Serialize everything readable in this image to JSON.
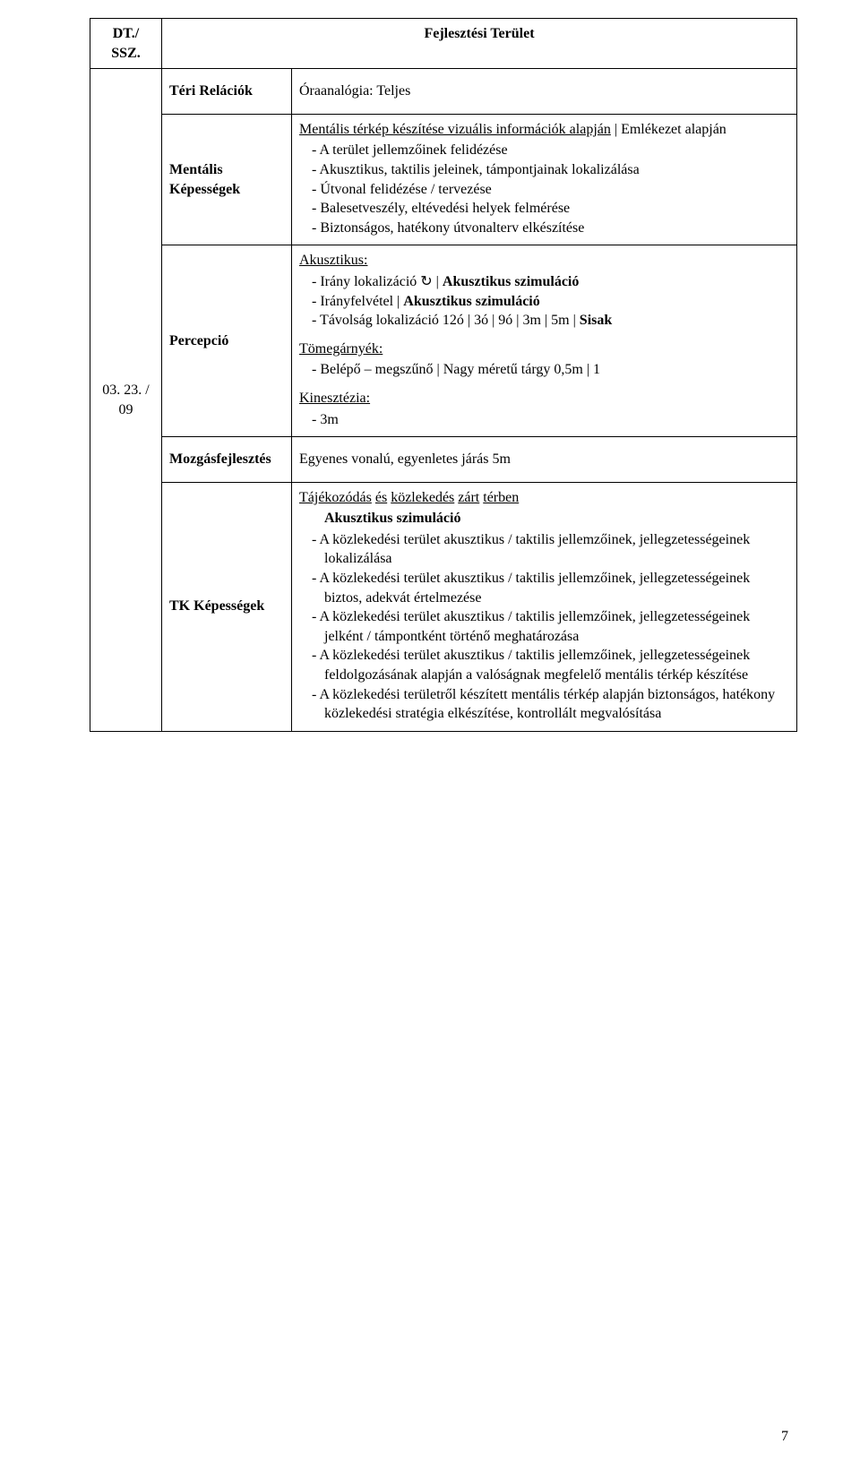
{
  "header": {
    "col1": "DT./ SSZ.",
    "col2": "Fejlesztési Terület"
  },
  "date_code": "03. 23. / 09",
  "page_number": "7",
  "rows": {
    "teri": {
      "label": "Téri Relációk",
      "content": "Óraanalógia: Teljes"
    },
    "mentalis": {
      "label_line1": "Mentális",
      "label_line2": "Képességek",
      "intro": "Mentális térkép készítése vizuális információk alapján",
      "intro_suffix": " | Emlékezet alapján",
      "items": [
        "A terület jellemzőinek felidézése",
        "Akusztikus, taktilis jeleinek, támpontjainak lokalizálása",
        "Útvonal felidézése / tervezése",
        "Balesetveszély, eltévedési helyek felmérése",
        "Biztonságos, hatékony útvonalterv elkészítése"
      ]
    },
    "percepcio": {
      "label": "Percepció",
      "akusztikus_title": "Akusztikus:",
      "akusztikus_items_html": [
        "Irány lokalizáció ↻ | <b>Akusztikus szimuláció</b>",
        "Irányfelvétel | <b>Akusztikus szimuláció</b>",
        "Távolság lokalizáció 12ó | 3ó | 9ó | 3m | 5m | <b>Sisak</b>"
      ],
      "tomeg_title": "Tömegárnyék:",
      "tomeg_items": [
        "Belépő – megszűnő | Nagy méretű tárgy 0,5m | 1"
      ],
      "kineszt_title": "Kinesztézia:",
      "kineszt_items": [
        "3m"
      ]
    },
    "mozgas": {
      "label": "Mozgásfejlesztés",
      "content": "Egyenes vonalú, egyenletes járás 5m"
    },
    "tk": {
      "label": "TK Képességek",
      "heading_underlined": "Tájékozódás és közlekedés zárt térben",
      "subheading": "Akusztikus szimuláció",
      "items": [
        "A közlekedési terület akusztikus / taktilis jellemzőinek, jellegzetességeinek lokalizálása",
        "A közlekedési terület akusztikus / taktilis jellemzőinek, jellegzetességeinek biztos, adekvát értelmezése",
        "A közlekedési terület akusztikus / taktilis jellemzőinek, jellegzetességeinek jelként / támpontként történő meghatározása",
        "A közlekedési terület akusztikus / taktilis jellemzőinek, jellegzetességeinek feldolgozásának alapján a valóságnak megfelelő mentális térkép készítése",
        "A közlekedési területről készített mentális térkép alapján biztonságos, hatékony közlekedési stratégia elkészítése, kontrollált megvalósítása"
      ]
    }
  }
}
